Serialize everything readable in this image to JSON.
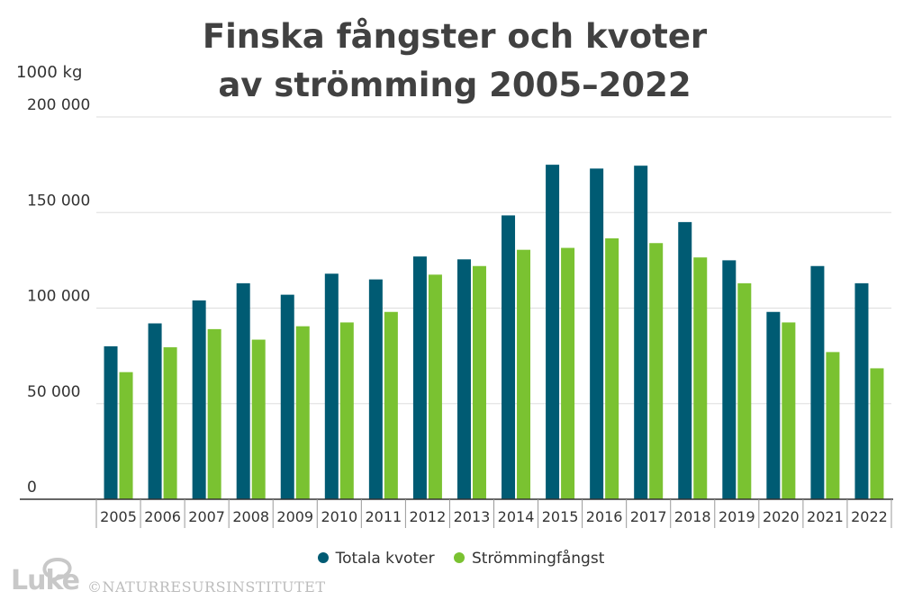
{
  "chart_data": {
    "type": "bar",
    "title_lines": [
      "Finska fångster och kvoter",
      "av strömming 2005–2022"
    ],
    "ylabel": "1000 kg",
    "ylim": [
      0,
      200000
    ],
    "yticks": [
      0,
      50000,
      100000,
      150000,
      200000
    ],
    "ytick_labels": [
      "0",
      "50 000",
      "100 000",
      "150 000",
      "200 000"
    ],
    "categories": [
      "2005",
      "2006",
      "2007",
      "2008",
      "2009",
      "2010",
      "2011",
      "2012",
      "2013",
      "2014",
      "2015",
      "2016",
      "2017",
      "2018",
      "2019",
      "2020",
      "2021",
      "2022"
    ],
    "series": [
      {
        "name": "Totala kvoter",
        "color": "#005b73",
        "values": [
          80000,
          92000,
          104000,
          113000,
          107000,
          118000,
          115000,
          127000,
          125500,
          148500,
          175000,
          173000,
          174500,
          145000,
          125000,
          98000,
          122000,
          113000
        ]
      },
      {
        "name": "Strömmingfångst",
        "color": "#7ac231",
        "values": [
          66500,
          79500,
          89000,
          83500,
          90500,
          92500,
          98000,
          117500,
          122000,
          130500,
          131500,
          136500,
          134000,
          126500,
          113000,
          92500,
          77000,
          68500
        ]
      }
    ],
    "grid": true,
    "legend_position": "bottom-center"
  },
  "branding": {
    "logo_text": "Luke",
    "copyright": "©NATURRESURSINSTITUTET"
  }
}
